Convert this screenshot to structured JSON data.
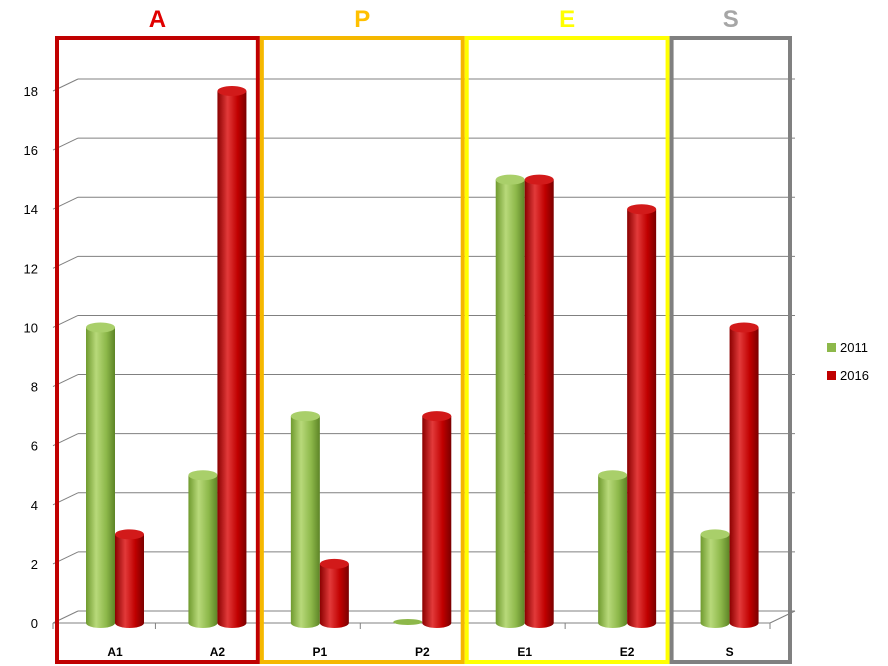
{
  "chart_data": {
    "type": "bar",
    "categories": [
      "A1",
      "A2",
      "P1",
      "P2",
      "E1",
      "E2",
      "S"
    ],
    "series": [
      {
        "name": "2011",
        "values": [
          10,
          5,
          7,
          0,
          15,
          5,
          3
        ],
        "color": "#8db84a"
      },
      {
        "name": "2016",
        "values": [
          3,
          18,
          2,
          7,
          15,
          14,
          10
        ],
        "color": "#c00000"
      }
    ],
    "ylim": [
      0,
      18
    ],
    "yticks": [
      "0",
      "2",
      "4",
      "6",
      "8",
      "10",
      "12",
      "14",
      "16",
      "18"
    ],
    "grid": true,
    "legend": "right",
    "groups": [
      {
        "label": "A",
        "color": "#e00000",
        "border": "#c00000",
        "categories": [
          "A1",
          "A2"
        ]
      },
      {
        "label": "P",
        "color": "#ffc000",
        "border": "#f5b800",
        "categories": [
          "P1",
          "P2"
        ]
      },
      {
        "label": "E",
        "color": "#ffff00",
        "border": "#ffff00",
        "categories": [
          "E1",
          "E2"
        ]
      },
      {
        "label": "S",
        "color": "#a6a6a6",
        "border": "#808080",
        "categories": [
          "S"
        ]
      }
    ]
  }
}
